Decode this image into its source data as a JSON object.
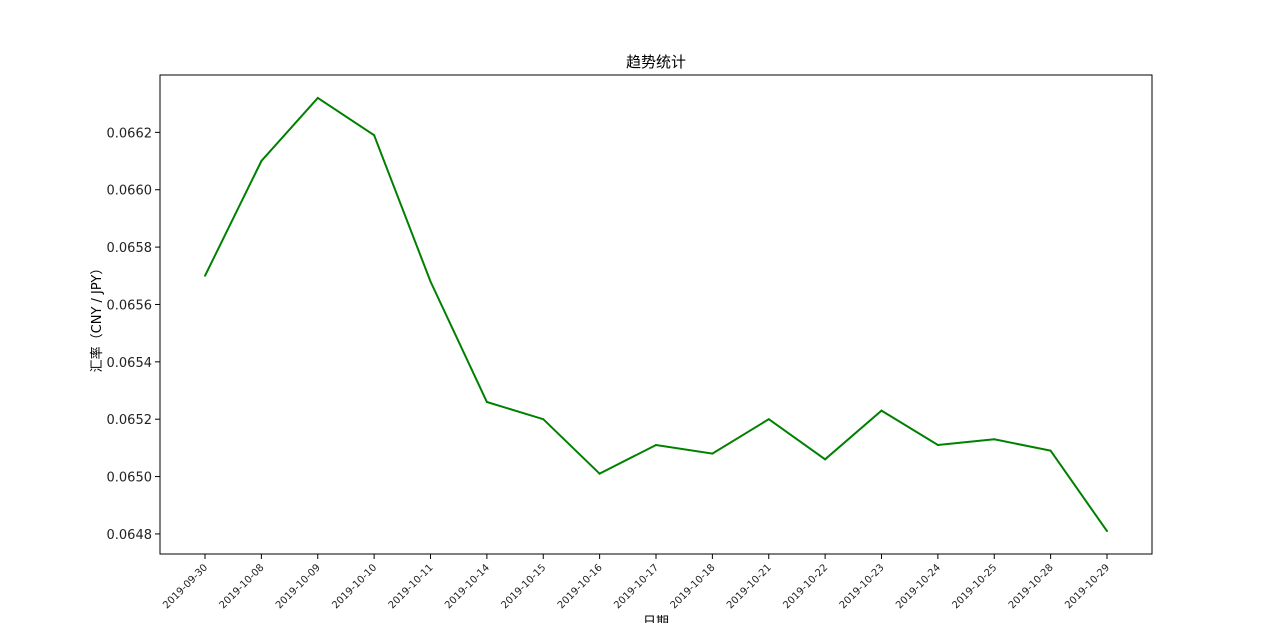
{
  "chart_data": {
    "type": "line",
    "title": "趋势统计",
    "xlabel": "日期",
    "ylabel": "汇率（CNY / JPY）",
    "categories": [
      "2019-09-30",
      "2019-10-08",
      "2019-10-09",
      "2019-10-10",
      "2019-10-11",
      "2019-10-14",
      "2019-10-15",
      "2019-10-16",
      "2019-10-17",
      "2019-10-18",
      "2019-10-21",
      "2019-10-22",
      "2019-10-23",
      "2019-10-24",
      "2019-10-25",
      "2019-10-28",
      "2019-10-29"
    ],
    "series": [
      {
        "color": "#008000",
        "values": [
          0.0657,
          0.0661,
          0.06632,
          0.06619,
          0.06568,
          0.06526,
          0.0652,
          0.06501,
          0.06511,
          0.06508,
          0.0652,
          0.06506,
          0.06523,
          0.06511,
          0.06513,
          0.06509,
          0.06481
        ]
      }
    ],
    "yticks": [
      "0.0648",
      "0.0650",
      "0.0652",
      "0.0654",
      "0.0656",
      "0.0658",
      "0.0660",
      "0.0662"
    ],
    "ylim": [
      0.06473,
      0.0664
    ],
    "grid": false,
    "legend": "none"
  }
}
